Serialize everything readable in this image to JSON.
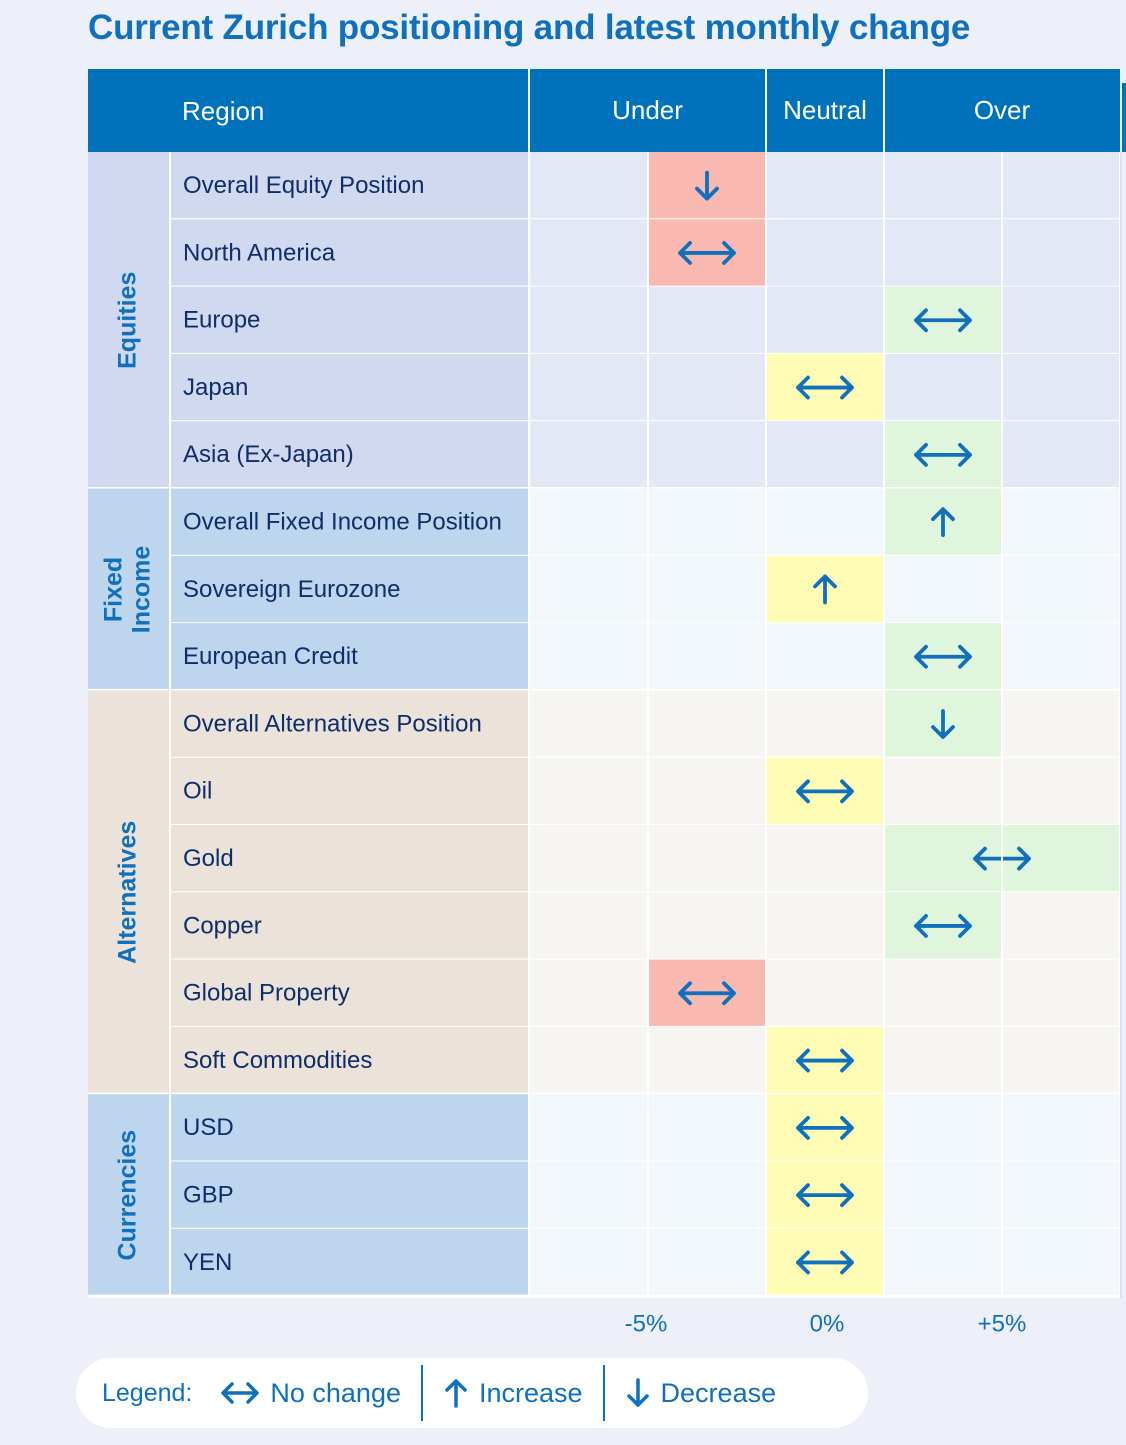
{
  "title": "Current Zurich positioning and latest monthly change",
  "colors": {
    "header": "#0072bc",
    "arrow": "#0f70bd",
    "under": "#f9b8b0",
    "neutral": "#fffcb6",
    "over": "#dff5dc",
    "equities_label_bg": "#d0d9ef",
    "equities_grid_bg": "#e2e8f5",
    "fixed_income_label_bg": "#bdd6ee",
    "fixed_income_grid_bg": "#f2f7fb",
    "alternatives_label_bg": "#ebe3d9",
    "alternatives_grid_bg": "#f6f5f2",
    "currencies_label_bg": "#bdd6ee",
    "currencies_grid_bg": "#f2f7fb"
  },
  "chart_data": {
    "type": "table",
    "header": {
      "region": "Region",
      "under": "Under",
      "neutral": "Neutral",
      "over": "Over"
    },
    "scale_columns": [
      "-10%",
      "-5%",
      "0%",
      "+5%",
      "+10%"
    ],
    "tick_labels": [
      "-5%",
      "0%",
      "+5%"
    ],
    "groups": [
      {
        "name": "Equities",
        "rows": [
          {
            "region": "Overall Equity Position",
            "position": "-5%",
            "span": 1,
            "change": "decrease"
          },
          {
            "region": "North America",
            "position": "-5%",
            "span": 1,
            "change": "no change"
          },
          {
            "region": "Europe",
            "position": "+5%",
            "span": 1,
            "change": "no change"
          },
          {
            "region": "Japan",
            "position": "0%",
            "span": 1,
            "change": "no change"
          },
          {
            "region": "Asia (Ex-Japan)",
            "position": "+5%",
            "span": 1,
            "change": "no change"
          }
        ]
      },
      {
        "name": "Fixed Income",
        "rows": [
          {
            "region": "Overall Fixed Income Position",
            "position": "+5%",
            "span": 1,
            "change": "increase"
          },
          {
            "region": "Sovereign Eurozone",
            "position": "0%",
            "span": 1,
            "change": "increase"
          },
          {
            "region": "European Credit",
            "position": "+5%",
            "span": 1,
            "change": "no change"
          }
        ]
      },
      {
        "name": "Alternatives",
        "rows": [
          {
            "region": "Overall Alternatives Position",
            "position": "+5%",
            "span": 1,
            "change": "decrease"
          },
          {
            "region": "Oil",
            "position": "0%",
            "span": 1,
            "change": "no change"
          },
          {
            "region": "Gold",
            "position": "+5%",
            "span": 2,
            "change": "no change"
          },
          {
            "region": "Copper",
            "position": "+5%",
            "span": 1,
            "change": "no change"
          },
          {
            "region": "Global Property",
            "position": "-5%",
            "span": 1,
            "change": "no change"
          },
          {
            "region": "Soft Commodities",
            "position": "0%",
            "span": 1,
            "change": "no change"
          }
        ]
      },
      {
        "name": "Currencies",
        "rows": [
          {
            "region": "USD",
            "position": "0%",
            "span": 1,
            "change": "no change"
          },
          {
            "region": "GBP",
            "position": "0%",
            "span": 1,
            "change": "no change"
          },
          {
            "region": "YEN",
            "position": "0%",
            "span": 1,
            "change": "no change"
          }
        ]
      }
    ]
  },
  "legend": {
    "title": "Legend:",
    "items": [
      {
        "key": "no change",
        "label": "No change",
        "icon": "double-arrow-icon"
      },
      {
        "key": "increase",
        "label": "Increase",
        "icon": "arrow-up-icon"
      },
      {
        "key": "decrease",
        "label": "Decrease",
        "icon": "arrow-down-icon"
      }
    ]
  }
}
